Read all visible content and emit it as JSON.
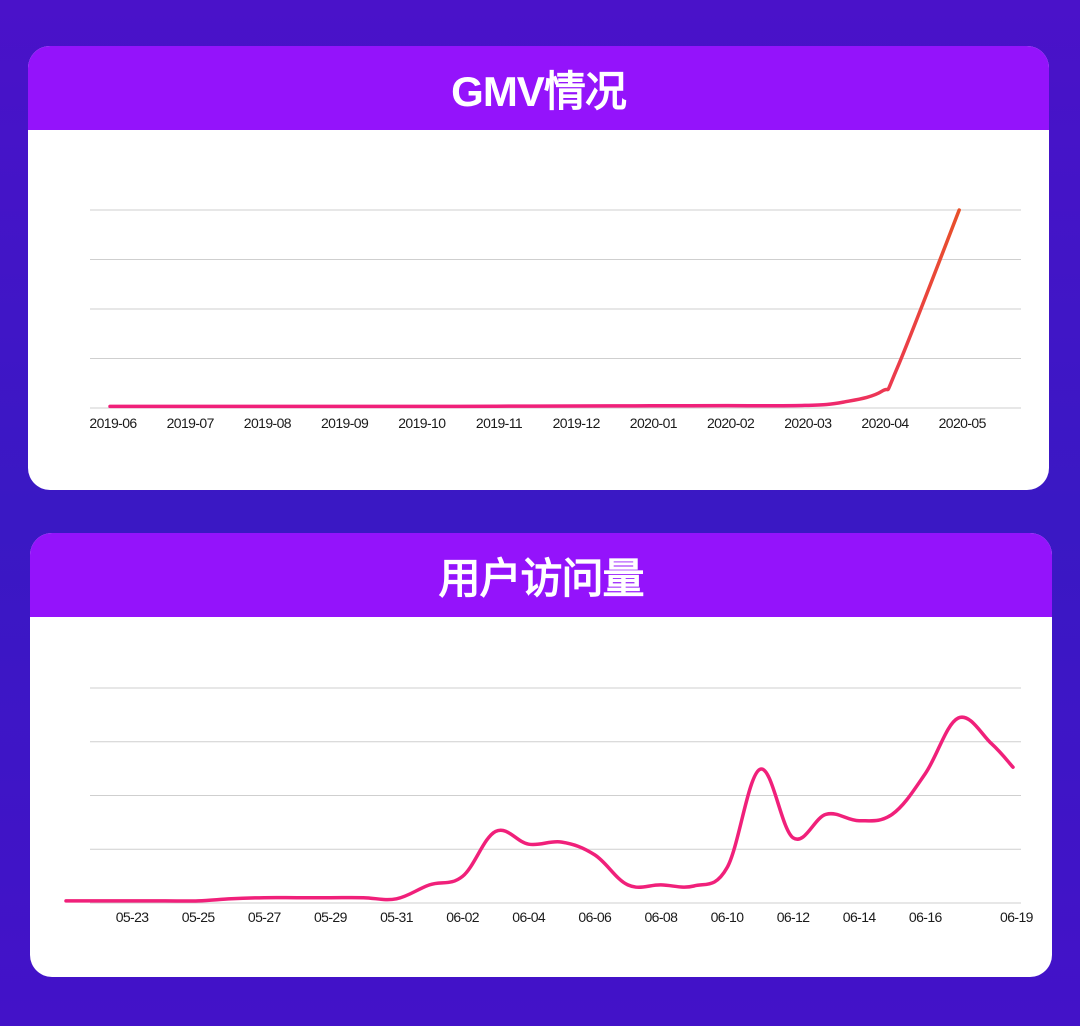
{
  "colors": {
    "page_background": "#3d16c6",
    "header": "#9413fb",
    "card": "#ffffff",
    "line_start": "#f0207a",
    "line_end": "#e8502a",
    "grid": "#cfcfcf"
  },
  "gmv_chart": {
    "title": "GMV情况"
  },
  "visits_chart": {
    "title": "用户访问量"
  },
  "chart_data": [
    {
      "type": "line",
      "title": "GMV情况",
      "xlabel": "",
      "ylabel": "",
      "y_tick_labels_shown": false,
      "grid": true,
      "ylim": [
        0,
        100
      ],
      "x_ticks": [
        "2019-06",
        "2019-07",
        "2019-08",
        "2019-09",
        "2019-10",
        "2019-11",
        "2019-12",
        "2020-01",
        "2020-02",
        "2020-03",
        "2020-04",
        "2020-05"
      ],
      "series": [
        {
          "x": [
            "2019-06",
            "2019-07",
            "2019-08",
            "2019-09",
            "2019-10",
            "2019-11",
            "2019-12",
            "2020-01",
            "2020-02",
            "2020-03",
            "2020-03.5",
            "2020-04",
            "2020-04.2",
            "2020-05"
          ],
          "values": [
            0.3,
            0.3,
            0.3,
            0.3,
            0.3,
            0.4,
            0.5,
            0.6,
            0.7,
            0.8,
            2.5,
            8,
            20,
            100
          ]
        }
      ]
    },
    {
      "type": "line",
      "title": "用户访问量",
      "xlabel": "",
      "ylabel": "",
      "y_tick_labels_shown": false,
      "grid": true,
      "ylim": [
        0,
        100
      ],
      "x_ticks": [
        "05-23",
        "05-25",
        "05-27",
        "05-29",
        "05-31",
        "06-02",
        "06-04",
        "06-06",
        "06-08",
        "06-10",
        "06-12",
        "06-14",
        "06-16",
        "06-19"
      ],
      "series": [
        {
          "x": [
            "05-21",
            "05-22",
            "05-23",
            "05-24",
            "05-25",
            "05-26",
            "05-27",
            "05-28",
            "05-29",
            "05-30",
            "05-31",
            "06-01",
            "06-02",
            "06-03",
            "06-04",
            "06-05",
            "06-06",
            "06-07",
            "06-08",
            "06-09",
            "06-10",
            "06-11",
            "06-12",
            "06-13",
            "06-14",
            "06-15",
            "06-16",
            "06-17",
            "06-18",
            "06-19"
          ],
          "values": [
            0.5,
            0.5,
            0.5,
            0.5,
            0.5,
            1.5,
            2,
            2,
            2,
            2,
            1.5,
            8,
            12,
            33,
            27,
            28,
            22,
            8,
            8,
            7.5,
            16,
            62,
            30,
            41,
            38,
            41,
            60,
            86,
            74,
            63
          ]
        }
      ]
    }
  ]
}
